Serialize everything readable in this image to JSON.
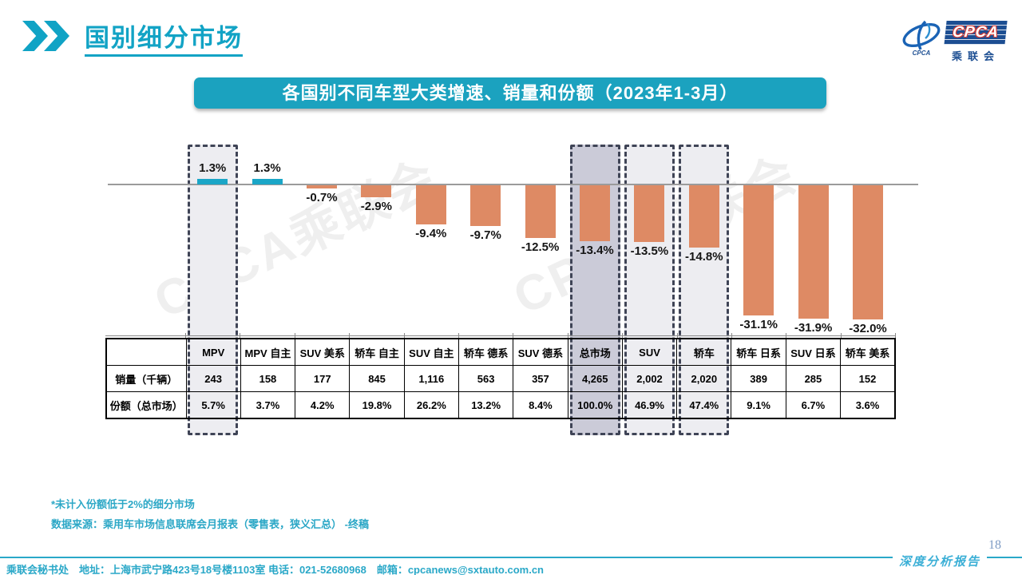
{
  "header": {
    "title": "国别细分市场"
  },
  "logo": {
    "mark_caption": "CPCA",
    "block_text": "CPCA",
    "block_sub": "乘联会"
  },
  "banner": {
    "title": "各国别不同车型大类增速、销量和份额（2023年1-3月）"
  },
  "watermark": {
    "text": "CPCA乘联会"
  },
  "chart_data": {
    "type": "bar",
    "title": "各国别不同车型大类增速、销量和份额（2023年1-3月）",
    "unit": "%",
    "ylim": [
      -36,
      4
    ],
    "grid": false,
    "categories": [
      "MPV",
      "MPV 自主",
      "SUV 美系",
      "轿车 自主",
      "SUV 自主",
      "轿车 德系",
      "SUV 德系",
      "总市场",
      "SUV",
      "轿车",
      "轿车 日系",
      "SUV 日系",
      "轿车 美系"
    ],
    "values": [
      1.3,
      1.3,
      -0.7,
      -2.9,
      -9.4,
      -9.7,
      -12.5,
      -13.4,
      -13.5,
      -14.8,
      -31.1,
      -31.9,
      -32.0
    ],
    "value_labels": [
      "1.3%",
      "1.3%",
      "-0.7%",
      "-2.9%",
      "-9.4%",
      "-9.7%",
      "-12.5%",
      "-13.4%",
      "-13.5%",
      "-14.8%",
      "-31.1%",
      "-31.9%",
      "-32.0%"
    ],
    "bar_colors": {
      "positive": "#1ba6c7",
      "negative": "#de8a64"
    },
    "highlight_border": "#3f4456",
    "highlighted_categories": [
      {
        "category": "MPV",
        "fill": "#ededf1"
      },
      {
        "category": "总市场",
        "fill": "#cbcbd8"
      },
      {
        "category": "SUV",
        "fill": "#ededf1"
      },
      {
        "category": "轿车",
        "fill": "#ededf1"
      }
    ],
    "table": {
      "corner": "",
      "rows": [
        {
          "label": "销量（千辆）",
          "cells": [
            "243",
            "158",
            "177",
            "845",
            "1,116",
            "563",
            "357",
            "4,265",
            "2,002",
            "2,020",
            "389",
            "285",
            "152"
          ]
        },
        {
          "label": "份额（总市场）",
          "cells": [
            "5.7%",
            "3.7%",
            "4.2%",
            "19.8%",
            "26.2%",
            "13.2%",
            "8.4%",
            "100.0%",
            "46.9%",
            "47.4%",
            "9.1%",
            "6.7%",
            "3.6%"
          ]
        }
      ]
    }
  },
  "notes": {
    "line1": "*未计入份额低于2%的细分市场",
    "line2": "数据来源：乘用车市场信息联席会月报表（零售表，狭义汇总） -终稿"
  },
  "footer": {
    "contact": "乘联会秘书处　地址：上海市武宁路423号18号楼1103室 电话：021-52680968　邮箱：cpcanews@sxtauto.com.cn",
    "report_label": "深度分析报告",
    "page_number": "18"
  }
}
